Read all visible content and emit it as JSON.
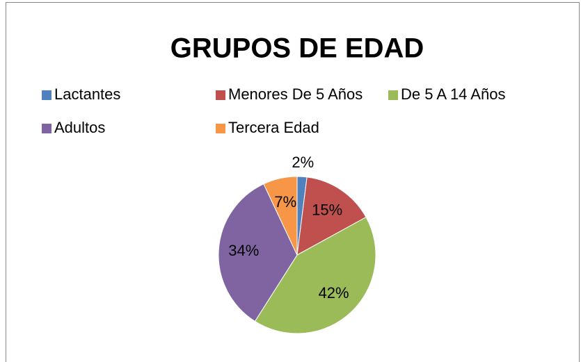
{
  "chart_data": {
    "type": "pie",
    "title": "GRUPOS DE EDAD",
    "categories": [
      "Lactantes",
      "Menores De 5 Años",
      "De 5 A 14 Años",
      "Adultos",
      "Tercera Edad"
    ],
    "values": [
      2,
      15,
      42,
      34,
      7
    ],
    "value_labels": [
      "2%",
      "15%",
      "42%",
      "34%",
      "7%"
    ],
    "colors": [
      "#4f81bd",
      "#c0504d",
      "#9bbb59",
      "#8064a2",
      "#f79646"
    ],
    "legend": "top"
  }
}
